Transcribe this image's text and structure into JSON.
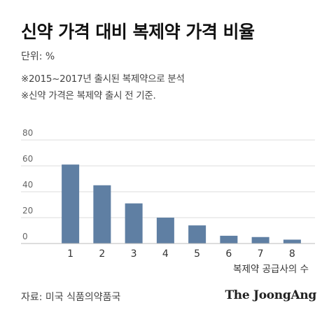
{
  "header": {
    "title": "신약 가격 대비 복제약 가격 비율",
    "unit": "단위: %",
    "notes": [
      "※2015~2017년 출시된 복제약으로 분석",
      "※신약 가격은 복제약 출시 전 기준."
    ]
  },
  "chart_data": {
    "type": "bar",
    "categories": [
      "1",
      "2",
      "3",
      "4",
      "5",
      "6",
      "7",
      "8"
    ],
    "values": [
      61,
      45,
      31,
      20,
      14,
      6,
      5,
      3
    ],
    "xlabel": "복제약 공급사의 수",
    "ylabel": "",
    "ylim": [
      0,
      80
    ],
    "yticks": [
      0,
      20,
      40,
      60,
      80
    ],
    "grid": true,
    "bar_color": "#5f7fa3",
    "grid_color": "#dddddd",
    "axis_color": "#bbbbbb"
  },
  "footer": {
    "source": "자료: 미국 식품의약품국",
    "brand": "The JoongAng"
  }
}
